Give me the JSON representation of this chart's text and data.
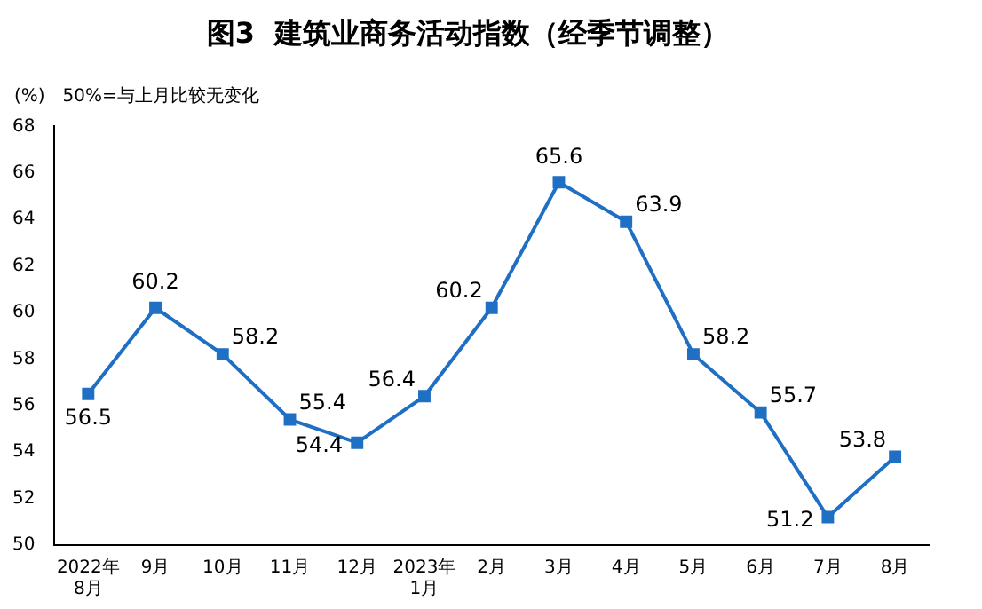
{
  "chart_data": {
    "type": "line",
    "title": "图3  建筑业商务活动指数（经季节调整）",
    "ylabel": "(%)",
    "annotations": [
      "50%=与上月比较无变化"
    ],
    "categories": [
      "2022年\n8月",
      "9月",
      "10月",
      "11月",
      "12月",
      "2023年\n1月",
      "2月",
      "3月",
      "4月",
      "5月",
      "6月",
      "7月",
      "8月"
    ],
    "series": [
      {
        "color": "#1f6fc4",
        "values": [
          56.5,
          60.2,
          58.2,
          55.4,
          54.4,
          56.4,
          60.2,
          65.6,
          63.9,
          58.2,
          55.7,
          51.2,
          53.8
        ]
      }
    ],
    "ylim": [
      50,
      68
    ],
    "yticks": [
      50,
      52,
      54,
      56,
      58,
      60,
      62,
      64,
      66,
      68
    ],
    "grid": false,
    "legend": false,
    "marker": "square",
    "line_style": "solid",
    "data_labels": true
  }
}
